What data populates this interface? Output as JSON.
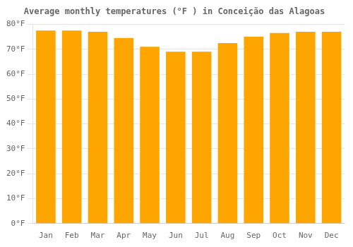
{
  "chart_data": {
    "type": "bar",
    "title": "Average monthly temperatures (°F ) in Conceição das Alagoas",
    "categories": [
      "Jan",
      "Feb",
      "Mar",
      "Apr",
      "May",
      "Jun",
      "Jul",
      "Aug",
      "Sep",
      "Oct",
      "Nov",
      "Dec"
    ],
    "values": [
      77.5,
      77.5,
      77.0,
      74.5,
      71.0,
      69.0,
      69.0,
      72.5,
      75.0,
      76.5,
      77.0,
      77.0
    ],
    "color": "#FFA500",
    "ylim": [
      0,
      80
    ],
    "yticks": [
      {
        "value": 0,
        "label": "0°F"
      },
      {
        "value": 10,
        "label": "10°F"
      },
      {
        "value": 20,
        "label": "20°F"
      },
      {
        "value": 30,
        "label": "30°F"
      },
      {
        "value": 40,
        "label": "40°F"
      },
      {
        "value": 50,
        "label": "50°F"
      },
      {
        "value": 60,
        "label": "60°F"
      },
      {
        "value": 70,
        "label": "70°F"
      },
      {
        "value": 80,
        "label": "80°F"
      }
    ],
    "grid": true
  }
}
